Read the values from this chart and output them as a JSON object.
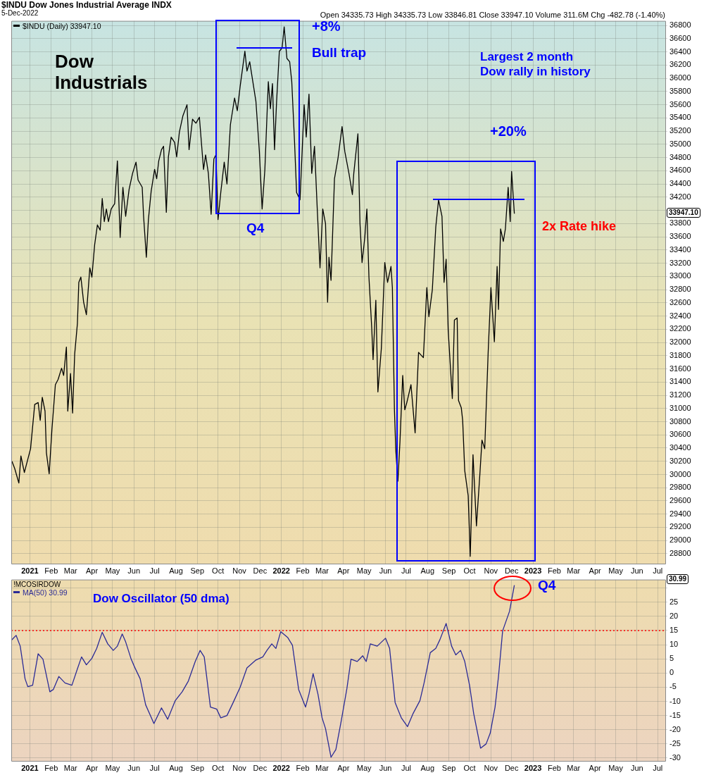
{
  "chart_data": [
    {
      "type": "line",
      "title": "$INDU Dow Jones Industrial Average INDX",
      "subtitle": "5-Dec-2022",
      "annotations": [
        "Dow Industrials",
        "+8%",
        "Bull trap",
        "Q4",
        "Largest 2 month Dow rally in history",
        "+20%",
        "2x Rate hike",
        "33947.10",
        "Open 34335.73 High 34335.73 Low 33846.81 Close 33947.10 Volume 311.6M Chg -482.78 (-1.40%)"
      ],
      "x": [
        "2020-12-06",
        "2020-12-10",
        "2020-12-16",
        "2020-12-19",
        "2020-12-24",
        "2021-01-02",
        "2021-01-08",
        "2021-01-13",
        "2021-01-16",
        "2021-01-19",
        "2021-01-23",
        "2021-01-25",
        "2021-01-29",
        "2021-02-02",
        "2021-02-07",
        "2021-02-11",
        "2021-02-16",
        "2021-02-19",
        "2021-02-23",
        "2021-02-25",
        "2021-03-01",
        "2021-03-04",
        "2021-03-07",
        "2021-03-11",
        "2021-03-13",
        "2021-03-16",
        "2021-03-20",
        "2021-03-24",
        "2021-03-29",
        "2021-04-01",
        "2021-04-05",
        "2021-04-09",
        "2021-04-13",
        "2021-04-16",
        "2021-04-19",
        "2021-04-22",
        "2021-04-25",
        "2021-04-29",
        "2021-05-04",
        "2021-05-08",
        "2021-05-12",
        "2021-05-16",
        "2021-05-20",
        "2021-05-25",
        "2021-05-30",
        "2021-06-04",
        "2021-06-07",
        "2021-06-13",
        "2021-06-15",
        "2021-06-19",
        "2021-06-22",
        "2021-06-26",
        "2021-07-01",
        "2021-07-04",
        "2021-07-07",
        "2021-07-11",
        "2021-07-14",
        "2021-07-18",
        "2021-07-21",
        "2021-07-25",
        "2021-07-30",
        "2021-08-02",
        "2021-08-06",
        "2021-08-11",
        "2021-08-17",
        "2021-08-20",
        "2021-08-25",
        "2021-08-30",
        "2021-09-04",
        "2021-09-10",
        "2021-09-13",
        "2021-09-17",
        "2021-09-21",
        "2021-09-25",
        "2021-09-28",
        "2021-10-01",
        "2021-10-05",
        "2021-10-10",
        "2021-10-14",
        "2021-10-19",
        "2021-10-25",
        "2021-10-29",
        "2021-11-02",
        "2021-11-09",
        "2021-11-12",
        "2021-11-16",
        "2021-11-25",
        "2021-11-30",
        "2021-12-04",
        "2021-12-08",
        "2021-12-13",
        "2021-12-16",
        "2021-12-19",
        "2021-12-22",
        "2021-12-25",
        "2021-12-29",
        "2022-01-02",
        "2022-01-05",
        "2022-01-09",
        "2022-01-13",
        "2022-01-16",
        "2022-01-20",
        "2022-01-23",
        "2022-01-28",
        "2022-02-03",
        "2022-02-06",
        "2022-02-10",
        "2022-02-14",
        "2022-02-18",
        "2022-02-22",
        "2022-02-26",
        "2022-03-02",
        "2022-03-06",
        "2022-03-09",
        "2022-03-11",
        "2022-03-14",
        "2022-03-19",
        "2022-03-24",
        "2022-03-30",
        "2022-04-03",
        "2022-04-09",
        "2022-04-14",
        "2022-04-16",
        "2022-04-22",
        "2022-04-25",
        "2022-04-28",
        "2022-05-02",
        "2022-05-05",
        "2022-05-08",
        "2022-05-12",
        "2022-05-14",
        "2022-05-18",
        "2022-05-21",
        "2022-05-26",
        "2022-05-31",
        "2022-06-04",
        "2022-06-09",
        "2022-06-11",
        "2022-06-14",
        "2022-06-16",
        "2022-06-19",
        "2022-06-22",
        "2022-06-26",
        "2022-06-29",
        "2022-07-02",
        "2022-07-08",
        "2022-07-14",
        "2022-07-19",
        "2022-07-26",
        "2022-07-31",
        "2022-08-03",
        "2022-08-08",
        "2022-08-13",
        "2022-08-17",
        "2022-08-22",
        "2022-08-25",
        "2022-08-28",
        "2022-08-31",
        "2022-09-06",
        "2022-09-09",
        "2022-09-13",
        "2022-09-15",
        "2022-09-19",
        "2022-09-21",
        "2022-09-24",
        "2022-09-29",
        "2022-10-02",
        "2022-10-06",
        "2022-10-11",
        "2022-10-16",
        "2022-10-19",
        "2022-10-23",
        "2022-10-28",
        "2022-11-01",
        "2022-11-06",
        "2022-11-10",
        "2022-11-12",
        "2022-11-15",
        "2022-11-19",
        "2022-11-22",
        "2022-11-26",
        "2022-11-29",
        "2022-12-01",
        "2022-12-02",
        "2022-12-05"
      ],
      "series": [
        {
          "name": "$INDU (Daily) 33947.10",
          "color": "#000000",
          "values": [
            30200,
            30090,
            29870,
            30280,
            30030,
            30390,
            31060,
            31090,
            30820,
            31170,
            30960,
            30330,
            30010,
            30680,
            31360,
            31440,
            31610,
            31500,
            31930,
            30960,
            31530,
            30930,
            31820,
            32290,
            32910,
            32990,
            32610,
            32420,
            33130,
            32990,
            33480,
            33780,
            33700,
            34180,
            33830,
            34020,
            33830,
            34020,
            34100,
            34750,
            33590,
            34350,
            33910,
            34320,
            34560,
            34730,
            34460,
            34350,
            33910,
            33290,
            33860,
            34290,
            34620,
            34480,
            34750,
            34920,
            34970,
            33970,
            34810,
            35110,
            35030,
            34810,
            35190,
            35430,
            35600,
            34920,
            35380,
            35320,
            35410,
            34620,
            34840,
            34560,
            33940,
            34780,
            34840,
            33860,
            34270,
            34730,
            34400,
            35300,
            35700,
            35510,
            35870,
            36410,
            36110,
            36250,
            35650,
            34890,
            34020,
            34620,
            35950,
            35540,
            35920,
            34920,
            35650,
            36410,
            36460,
            36780,
            36300,
            36250,
            35950,
            35050,
            34270,
            34160,
            35600,
            35110,
            35760,
            34560,
            34970,
            34020,
            33130,
            34020,
            33800,
            32610,
            33290,
            32940,
            34480,
            34780,
            35270,
            34890,
            34560,
            34240,
            34560,
            35160,
            33800,
            33210,
            33590,
            34020,
            32990,
            32230,
            31740,
            32640,
            31250,
            31910,
            33210,
            32910,
            33150,
            32830,
            30980,
            30360,
            29900,
            30490,
            31500,
            30980,
            31090,
            31360,
            30630,
            31850,
            31770,
            32830,
            32390,
            32800,
            33750,
            34160,
            33910,
            32910,
            33260,
            32180,
            31150,
            32340,
            32370,
            31120,
            31010,
            30820,
            30060,
            29680,
            28760,
            30300,
            29220,
            30010,
            30520,
            30390,
            31850,
            32830,
            32010,
            33150,
            32500,
            33720,
            33530,
            33720,
            34350,
            33830,
            34590,
            34430,
            33950
          ]
        }
      ],
      "legend": "top left",
      "grid": true,
      "xlim": [
        "2020-12-05",
        "2023-07-12"
      ],
      "xticks": [
        {
          "value": "2021-01-01",
          "label": "2021"
        },
        {
          "value": "2021-02-01",
          "label": "Feb"
        },
        {
          "value": "2021-03-01",
          "label": "Mar"
        },
        {
          "value": "2021-04-01",
          "label": "Apr"
        },
        {
          "value": "2021-05-01",
          "label": "May"
        },
        {
          "value": "2021-06-01",
          "label": "Jun"
        },
        {
          "value": "2021-07-01",
          "label": "Jul"
        },
        {
          "value": "2021-08-01",
          "label": "Aug"
        },
        {
          "value": "2021-09-01",
          "label": "Sep"
        },
        {
          "value": "2021-10-01",
          "label": "Oct"
        },
        {
          "value": "2021-11-01",
          "label": "Nov"
        },
        {
          "value": "2021-12-01",
          "label": "Dec"
        },
        {
          "value": "2022-01-01",
          "label": "2022"
        },
        {
          "value": "2022-02-01",
          "label": "Feb"
        },
        {
          "value": "2022-03-01",
          "label": "Mar"
        },
        {
          "value": "2022-04-01",
          "label": "Apr"
        },
        {
          "value": "2022-05-01",
          "label": "May"
        },
        {
          "value": "2022-06-01",
          "label": "Jun"
        },
        {
          "value": "2022-07-01",
          "label": "Jul"
        },
        {
          "value": "2022-08-01",
          "label": "Aug"
        },
        {
          "value": "2022-09-01",
          "label": "Sep"
        },
        {
          "value": "2022-10-01",
          "label": "Oct"
        },
        {
          "value": "2022-11-01",
          "label": "Nov"
        },
        {
          "value": "2022-12-01",
          "label": "Dec"
        },
        {
          "value": "2023-01-01",
          "label": "2023"
        },
        {
          "value": "2023-02-01",
          "label": "Feb"
        },
        {
          "value": "2023-03-01",
          "label": "Mar"
        },
        {
          "value": "2023-04-01",
          "label": "Apr"
        },
        {
          "value": "2023-05-01",
          "label": "May"
        },
        {
          "value": "2023-06-01",
          "label": "Jun"
        },
        {
          "value": "2023-07-01",
          "label": "Jul"
        }
      ],
      "ylim": [
        28650,
        36870
      ],
      "yticks": [
        28800,
        29000,
        29200,
        29400,
        29600,
        29800,
        30000,
        30200,
        30400,
        30600,
        30800,
        31000,
        31200,
        31400,
        31600,
        31800,
        32000,
        32200,
        32400,
        32600,
        32800,
        33000,
        33200,
        33400,
        33600,
        33800,
        {
          "value": 34000,
          "label": null
        },
        34200,
        34400,
        34600,
        34800,
        35000,
        35200,
        35400,
        35600,
        35800,
        36000,
        36200,
        36400,
        36600,
        36800
      ]
    },
    {
      "type": "line",
      "legend_title": "!MCOSIRDOW",
      "annotations": [
        "Dow Oscillator (50 dma)",
        "Q4",
        "30.99"
      ],
      "x": [
        "2020-12-05",
        "2020-12-12",
        "2020-12-18",
        "2020-12-25",
        "2020-12-29",
        "2021-01-05",
        "2021-01-13",
        "2021-01-20",
        "2021-01-30",
        "2021-02-04",
        "2021-02-12",
        "2021-02-21",
        "2021-03-03",
        "2021-03-11",
        "2021-03-17",
        "2021-03-24",
        "2021-04-01",
        "2021-04-08",
        "2021-04-16",
        "2021-04-24",
        "2021-05-02",
        "2021-05-08",
        "2021-05-15",
        "2021-05-20",
        "2021-05-28",
        "2021-06-02",
        "2021-06-10",
        "2021-06-18",
        "2021-06-30",
        "2021-07-11",
        "2021-07-20",
        "2021-07-31",
        "2021-08-10",
        "2021-08-19",
        "2021-08-29",
        "2021-09-05",
        "2021-09-11",
        "2021-09-20",
        "2021-09-29",
        "2021-10-05",
        "2021-10-14",
        "2021-10-23",
        "2021-11-02",
        "2021-11-12",
        "2021-11-25",
        "2021-12-05",
        "2021-12-11",
        "2021-12-18",
        "2021-12-24",
        "2021-12-31",
        "2022-01-10",
        "2022-01-17",
        "2022-01-26",
        "2022-02-05",
        "2022-02-10",
        "2022-02-16",
        "2022-02-23",
        "2022-03-01",
        "2022-03-06",
        "2022-03-14",
        "2022-03-21",
        "2022-03-29",
        "2022-04-06",
        "2022-04-12",
        "2022-04-21",
        "2022-04-29",
        "2022-05-04",
        "2022-05-10",
        "2022-05-20",
        "2022-06-01",
        "2022-06-07",
        "2022-06-15",
        "2022-06-24",
        "2022-07-03",
        "2022-07-11",
        "2022-07-21",
        "2022-07-27",
        "2022-08-05",
        "2022-08-13",
        "2022-08-19",
        "2022-08-28",
        "2022-09-05",
        "2022-09-11",
        "2022-09-18",
        "2022-09-24",
        "2022-10-01",
        "2022-10-07",
        "2022-10-17",
        "2022-10-25",
        "2022-10-31",
        "2022-11-07",
        "2022-11-12",
        "2022-11-18",
        "2022-11-28",
        "2022-12-05"
      ],
      "series": [
        {
          "name": "MA(50) 30.99",
          "color": "#2b2b96",
          "values": [
            11.5,
            13.3,
            9.5,
            -2,
            -4.8,
            -4.3,
            6.8,
            4.9,
            -6.6,
            -5.8,
            -1.2,
            -3.5,
            -4.3,
            1.5,
            5.7,
            2.9,
            5.2,
            8.7,
            14.4,
            10.3,
            8,
            9.5,
            13.8,
            11,
            4.9,
            2.1,
            -2,
            -11.2,
            -17.8,
            -12.3,
            -16.3,
            -9.7,
            -6.6,
            -2.8,
            4.1,
            8,
            5.7,
            -12,
            -12.7,
            -15.8,
            -15,
            -10.4,
            -5.1,
            1.8,
            4.6,
            5.7,
            8,
            10.3,
            8.7,
            14.6,
            12.6,
            9.8,
            -5.8,
            -12,
            -7.4,
            -0.2,
            -7.4,
            -15.8,
            -19.6,
            -29.7,
            -27,
            -16.6,
            -5.5,
            4.9,
            4.1,
            6.1,
            4.1,
            10.3,
            9.5,
            12.3,
            8.7,
            -10.4,
            -15.8,
            -18.9,
            -14.3,
            -9.7,
            -3.5,
            7.2,
            8.7,
            11.8,
            17.5,
            9.5,
            6.4,
            8,
            4.1,
            -4.3,
            -14.3,
            -26.5,
            -25,
            -21.2,
            -12,
            -1.2,
            14.9,
            21.8,
            31
          ]
        }
      ],
      "legend": "top left",
      "grid": true,
      "ref_lines": [
        {
          "axis": "y",
          "value": 15,
          "color": "#ff0000",
          "line_style": "dotted"
        }
      ],
      "xlim": [
        "2020-12-05",
        "2023-07-12"
      ],
      "xticks": [
        {
          "value": "2021-01-01",
          "label": "2021"
        },
        {
          "value": "2021-02-01",
          "label": "Feb"
        },
        {
          "value": "2021-03-01",
          "label": "Mar"
        },
        {
          "value": "2021-04-01",
          "label": "Apr"
        },
        {
          "value": "2021-05-01",
          "label": "May"
        },
        {
          "value": "2021-06-01",
          "label": "Jun"
        },
        {
          "value": "2021-07-01",
          "label": "Jul"
        },
        {
          "value": "2021-08-01",
          "label": "Aug"
        },
        {
          "value": "2021-09-01",
          "label": "Sep"
        },
        {
          "value": "2021-10-01",
          "label": "Oct"
        },
        {
          "value": "2021-11-01",
          "label": "Nov"
        },
        {
          "value": "2021-12-01",
          "label": "Dec"
        },
        {
          "value": "2022-01-01",
          "label": "2022"
        },
        {
          "value": "2022-02-01",
          "label": "Feb"
        },
        {
          "value": "2022-03-01",
          "label": "Mar"
        },
        {
          "value": "2022-04-01",
          "label": "Apr"
        },
        {
          "value": "2022-05-01",
          "label": "May"
        },
        {
          "value": "2022-06-01",
          "label": "Jun"
        },
        {
          "value": "2022-07-01",
          "label": "Jul"
        },
        {
          "value": "2022-08-01",
          "label": "Aug"
        },
        {
          "value": "2022-09-01",
          "label": "Sep"
        },
        {
          "value": "2022-10-01",
          "label": "Oct"
        },
        {
          "value": "2022-11-01",
          "label": "Nov"
        },
        {
          "value": "2022-12-01",
          "label": "Dec"
        },
        {
          "value": "2023-01-01",
          "label": "2023"
        },
        {
          "value": "2023-02-01",
          "label": "Feb"
        },
        {
          "value": "2023-03-01",
          "label": "Mar"
        },
        {
          "value": "2023-04-01",
          "label": "Apr"
        },
        {
          "value": "2023-05-01",
          "label": "May"
        },
        {
          "value": "2023-06-01",
          "label": "Jun"
        },
        {
          "value": "2023-07-01",
          "label": "Jul"
        }
      ],
      "ylim": [
        -31,
        33
      ],
      "yticks": [
        -30,
        -25,
        -20,
        -15,
        -10,
        -5,
        0,
        5,
        10,
        15,
        20,
        25,
        {
          "value": 30,
          "label": null
        }
      ]
    }
  ]
}
